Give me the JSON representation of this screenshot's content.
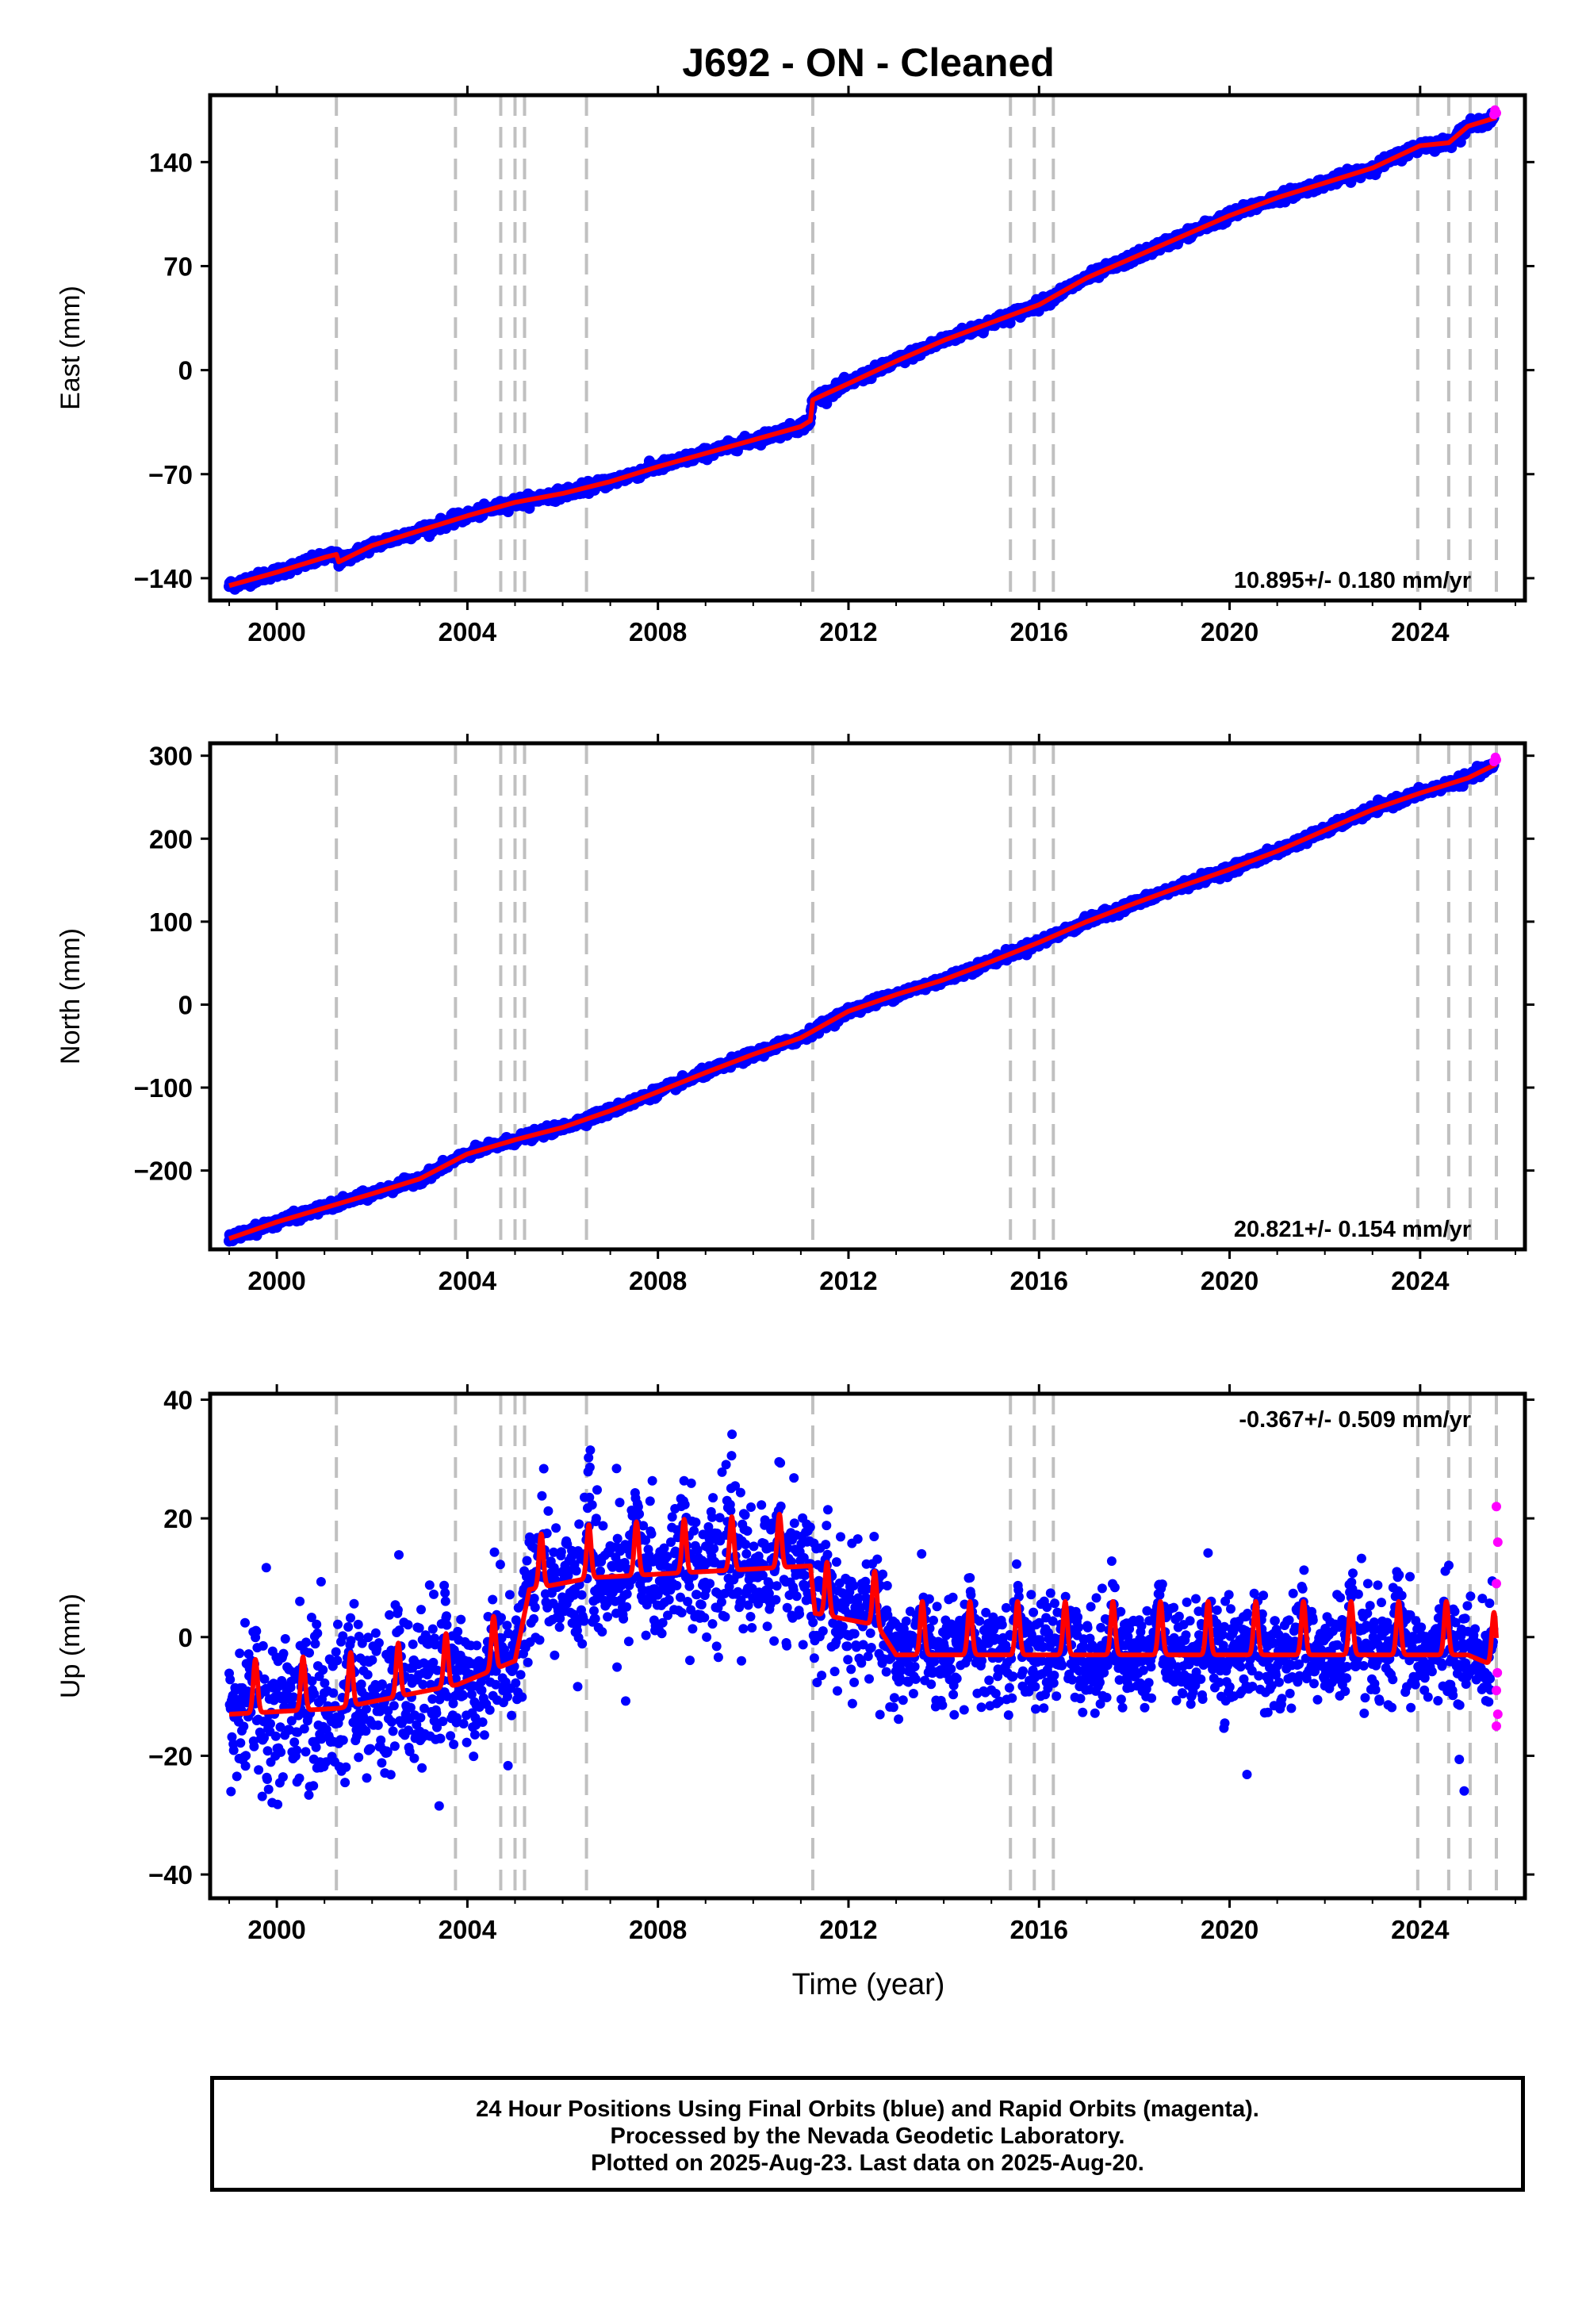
{
  "figure_title": "J692  - ON - Cleaned",
  "x_axis": {
    "label": "Time (year)",
    "ticks": [
      2000,
      2004,
      2008,
      2012,
      2016,
      2020,
      2024
    ],
    "range": [
      1998.6,
      2026.2
    ]
  },
  "event_lines": [
    2001.25,
    2003.75,
    2004.7,
    2005.0,
    2005.2,
    2006.5,
    2011.25,
    2015.4,
    2015.9,
    2016.3,
    2023.95,
    2024.6,
    2025.05,
    2025.6
  ],
  "colors": {
    "final_orbits": "#0000ff",
    "rapid_orbits": "#ff00ff",
    "model": "#ff0000",
    "event_line": "#c0c0c0"
  },
  "chart_data": [
    {
      "type": "scatter",
      "name": "east",
      "ylabel": "East (mm)",
      "yticks": [
        -140,
        -70,
        0,
        70,
        140
      ],
      "ylim": [
        -155,
        185
      ],
      "rate_label": "10.895+/- 0.180 mm/yr",
      "rate_position": "bottom-right",
      "model_points": [
        [
          1999.0,
          -145
        ],
        [
          2000.0,
          -136
        ],
        [
          2001.0,
          -126
        ],
        [
          2001.25,
          -124
        ],
        [
          2001.3,
          -129
        ],
        [
          2002.0,
          -118
        ],
        [
          2003.0,
          -108
        ],
        [
          2004.0,
          -98
        ],
        [
          2005.0,
          -89
        ],
        [
          2006.0,
          -83
        ],
        [
          2007.0,
          -75
        ],
        [
          2008.0,
          -65
        ],
        [
          2009.0,
          -56
        ],
        [
          2010.0,
          -47
        ],
        [
          2011.0,
          -38
        ],
        [
          2011.2,
          -34
        ],
        [
          2011.25,
          -20
        ],
        [
          2012.0,
          -9
        ],
        [
          2013.0,
          6
        ],
        [
          2014.0,
          20
        ],
        [
          2015.0,
          32
        ],
        [
          2016.0,
          44
        ],
        [
          2017.0,
          62
        ],
        [
          2018.0,
          76
        ],
        [
          2019.0,
          90
        ],
        [
          2020.0,
          104
        ],
        [
          2021.0,
          116
        ],
        [
          2022.0,
          126
        ],
        [
          2023.0,
          136
        ],
        [
          2024.0,
          151
        ],
        [
          2024.6,
          153
        ],
        [
          2025.0,
          164
        ],
        [
          2025.6,
          170
        ]
      ],
      "rapid_points": [
        [
          2025.55,
          172
        ],
        [
          2025.57,
          175
        ],
        [
          2025.6,
          173
        ]
      ]
    },
    {
      "type": "scatter",
      "name": "north",
      "ylabel": "North (mm)",
      "yticks": [
        -200,
        -100,
        0,
        100,
        200,
        300
      ],
      "ylim": [
        -295,
        315
      ],
      "rate_label": "20.821+/- 0.154 mm/yr",
      "rate_position": "bottom-right",
      "model_points": [
        [
          1999.0,
          -282
        ],
        [
          2000.0,
          -262
        ],
        [
          2001.0,
          -245
        ],
        [
          2002.0,
          -228
        ],
        [
          2003.0,
          -210
        ],
        [
          2004.0,
          -180
        ],
        [
          2005.0,
          -163
        ],
        [
          2006.0,
          -148
        ],
        [
          2007.0,
          -128
        ],
        [
          2008.0,
          -105
        ],
        [
          2009.0,
          -82
        ],
        [
          2010.0,
          -60
        ],
        [
          2011.0,
          -40
        ],
        [
          2012.0,
          -8
        ],
        [
          2013.0,
          12
        ],
        [
          2014.0,
          30
        ],
        [
          2015.0,
          52
        ],
        [
          2016.0,
          75
        ],
        [
          2017.0,
          100
        ],
        [
          2018.0,
          122
        ],
        [
          2019.0,
          143
        ],
        [
          2020.0,
          163
        ],
        [
          2021.0,
          185
        ],
        [
          2022.0,
          210
        ],
        [
          2023.0,
          235
        ],
        [
          2024.0,
          255
        ],
        [
          2025.0,
          273
        ],
        [
          2025.6,
          290
        ]
      ],
      "rapid_points": [
        [
          2025.55,
          293
        ],
        [
          2025.58,
          298
        ],
        [
          2025.6,
          295
        ]
      ]
    },
    {
      "type": "scatter",
      "name": "up",
      "ylabel": "Up (mm)",
      "yticks": [
        -40,
        -20,
        0,
        20,
        40
      ],
      "ylim": [
        -44,
        41
      ],
      "rate_label": "-0.367+/- 0.509 mm/yr",
      "rate_position": "top-right",
      "model_baseline": [
        [
          1999.0,
          -13
        ],
        [
          2001.3,
          -12
        ],
        [
          2003.8,
          -8
        ],
        [
          2005.0,
          -4
        ],
        [
          2005.3,
          8
        ],
        [
          2006.6,
          10
        ],
        [
          2011.2,
          12
        ],
        [
          2011.3,
          4
        ],
        [
          2012.6,
          2
        ],
        [
          2013.0,
          -3
        ],
        [
          2025.0,
          -3
        ],
        [
          2025.6,
          -5
        ]
      ],
      "rapid_points": [
        [
          2025.6,
          22
        ],
        [
          2025.63,
          16
        ],
        [
          2025.6,
          9
        ],
        [
          2025.62,
          -6
        ],
        [
          2025.6,
          -9
        ],
        [
          2025.63,
          -13
        ],
        [
          2025.6,
          -15
        ]
      ]
    }
  ],
  "footer": {
    "line1": "24 Hour Positions Using Final Orbits (blue) and Rapid Orbits (magenta).",
    "line2": "Processed by the Nevada Geodetic Laboratory.",
    "line3": "Plotted on 2025-Aug-23. Last data on 2025-Aug-20."
  }
}
